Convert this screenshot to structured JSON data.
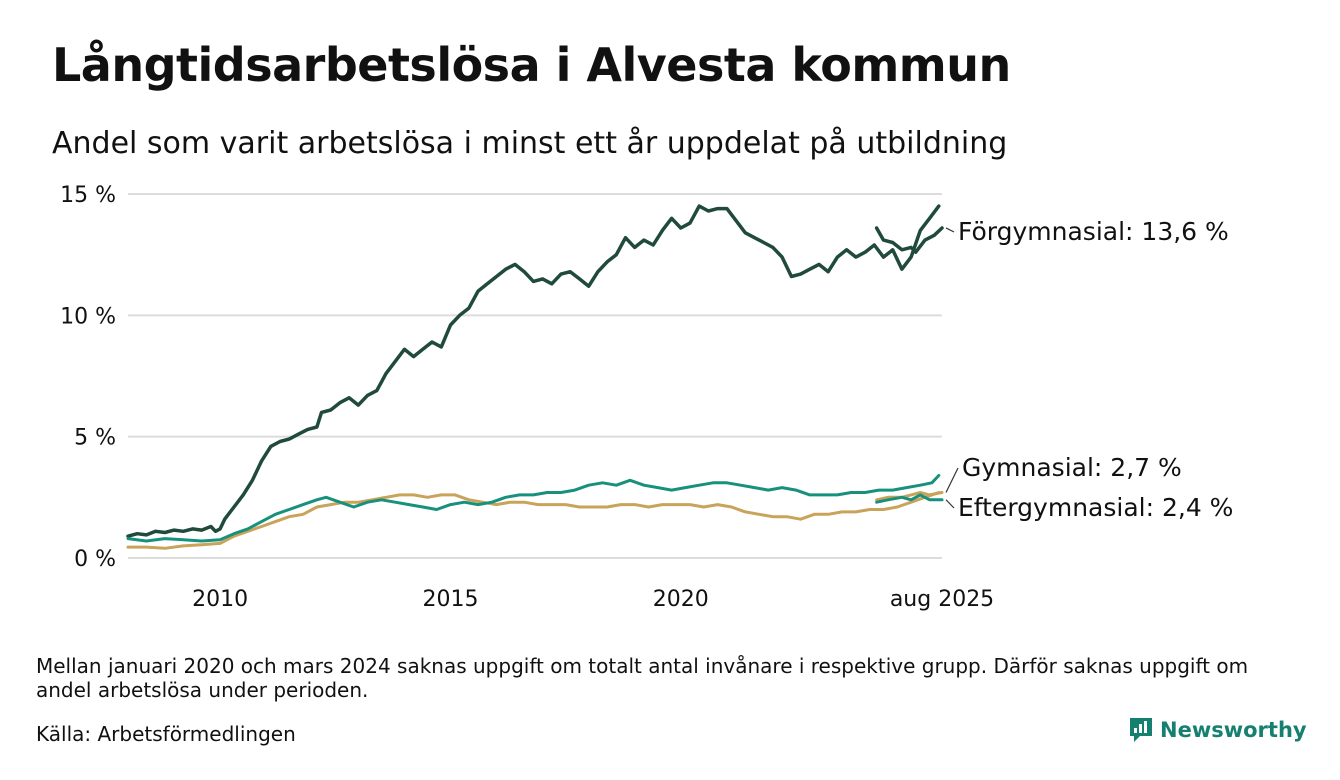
{
  "title": "Långtidsarbetslösa i Alvesta kommun",
  "subtitle": "Andel som varit arbetslösa i minst ett år uppdelat på utbildning",
  "note": "Mellan januari 2020 och mars 2024 saknas uppgift om totalt antal invånare i respektive grupp. Därför saknas uppgift om andel arbetslösa under perioden.",
  "source": "Källa: Arbetsförmedlingen",
  "brand": {
    "name": "Newsworthy",
    "icon": "newsworthy-logo-icon",
    "color": "#15806f"
  },
  "chart_data": {
    "type": "line",
    "x_unit": "year",
    "xlim": [
      2008,
      2025.67
    ],
    "ylim": [
      0,
      15
    ],
    "y_ticks": [
      0,
      5,
      10,
      15
    ],
    "y_tick_labels": [
      "0 %",
      "5 %",
      "10 %",
      "15 %"
    ],
    "x_ticks": [
      2010,
      2015,
      2020,
      2025.67
    ],
    "x_tick_labels": [
      "2010",
      "2015",
      "2020",
      "aug 2025"
    ],
    "grid": true,
    "gap": [
      "2020-01",
      "2024-03"
    ],
    "series": [
      {
        "name": "Förgymnasial",
        "end_label": "Förgymnasial: 13,6 %",
        "color": "#1f4a3c",
        "segments": [
          [
            [
              2008.0,
              0.9
            ],
            [
              2008.2,
              1.0
            ],
            [
              2008.4,
              0.95
            ],
            [
              2008.6,
              1.1
            ],
            [
              2008.8,
              1.05
            ],
            [
              2009.0,
              1.15
            ],
            [
              2009.2,
              1.1
            ],
            [
              2009.4,
              1.2
            ],
            [
              2009.6,
              1.15
            ],
            [
              2009.8,
              1.3
            ],
            [
              2009.9,
              1.1
            ],
            [
              2010.0,
              1.2
            ],
            [
              2010.1,
              1.6
            ],
            [
              2010.3,
              2.1
            ],
            [
              2010.5,
              2.6
            ],
            [
              2010.7,
              3.2
            ],
            [
              2010.9,
              4.0
            ],
            [
              2011.1,
              4.6
            ],
            [
              2011.3,
              4.8
            ],
            [
              2011.5,
              4.9
            ],
            [
              2011.7,
              5.1
            ],
            [
              2011.9,
              5.3
            ],
            [
              2012.1,
              5.4
            ],
            [
              2012.2,
              6.0
            ],
            [
              2012.4,
              6.1
            ],
            [
              2012.6,
              6.4
            ],
            [
              2012.8,
              6.6
            ],
            [
              2013.0,
              6.3
            ],
            [
              2013.2,
              6.7
            ],
            [
              2013.4,
              6.9
            ],
            [
              2013.6,
              7.6
            ],
            [
              2013.8,
              8.1
            ],
            [
              2014.0,
              8.6
            ],
            [
              2014.2,
              8.3
            ],
            [
              2014.4,
              8.6
            ],
            [
              2014.6,
              8.9
            ],
            [
              2014.8,
              8.7
            ],
            [
              2015.0,
              9.6
            ],
            [
              2015.2,
              10.0
            ],
            [
              2015.4,
              10.3
            ],
            [
              2015.6,
              11.0
            ],
            [
              2015.8,
              11.3
            ],
            [
              2016.0,
              11.6
            ],
            [
              2016.2,
              11.9
            ],
            [
              2016.4,
              12.1
            ],
            [
              2016.6,
              11.8
            ],
            [
              2016.8,
              11.4
            ],
            [
              2017.0,
              11.5
            ],
            [
              2017.2,
              11.3
            ],
            [
              2017.4,
              11.7
            ],
            [
              2017.6,
              11.8
            ],
            [
              2017.8,
              11.5
            ],
            [
              2018.0,
              11.2
            ],
            [
              2018.2,
              11.8
            ],
            [
              2018.4,
              12.2
            ],
            [
              2018.6,
              12.5
            ],
            [
              2018.8,
              13.2
            ],
            [
              2019.0,
              12.8
            ],
            [
              2019.2,
              13.1
            ],
            [
              2019.4,
              12.9
            ],
            [
              2019.6,
              13.5
            ],
            [
              2019.8,
              14.0
            ],
            [
              2020.0,
              13.6
            ],
            [
              2020.2,
              13.8
            ],
            [
              2020.4,
              14.5
            ],
            [
              2020.6,
              14.3
            ],
            [
              2020.8,
              14.4
            ],
            [
              2021.0,
              14.4
            ],
            [
              2021.2,
              13.9
            ],
            [
              2021.4,
              13.4
            ],
            [
              2021.6,
              13.2
            ],
            [
              2021.8,
              13.0
            ],
            [
              2022.0,
              12.8
            ],
            [
              2022.2,
              12.4
            ],
            [
              2022.4,
              11.6
            ],
            [
              2022.6,
              11.7
            ],
            [
              2022.8,
              11.9
            ],
            [
              2023.0,
              12.1
            ],
            [
              2023.2,
              11.8
            ],
            [
              2023.4,
              12.4
            ],
            [
              2023.6,
              12.7
            ],
            [
              2023.8,
              12.4
            ],
            [
              2024.0,
              12.6
            ],
            [
              2024.2,
              12.9
            ],
            [
              2024.4,
              12.4
            ],
            [
              2024.6,
              12.7
            ],
            [
              2024.8,
              11.9
            ],
            [
              2025.0,
              12.4
            ],
            [
              2025.2,
              13.5
            ],
            [
              2025.4,
              14.0
            ],
            [
              2025.6,
              14.5
            ]
          ],
          [
            [
              2024.25,
              13.6
            ],
            [
              2024.4,
              13.1
            ],
            [
              2024.6,
              13.0
            ],
            [
              2024.8,
              12.7
            ],
            [
              2025.0,
              12.8
            ],
            [
              2025.1,
              12.6
            ],
            [
              2025.3,
              13.1
            ],
            [
              2025.5,
              13.3
            ],
            [
              2025.67,
              13.6
            ]
          ]
        ]
      },
      {
        "name": "Gymnasial",
        "end_label": "Gymnasial:  2,7 %",
        "color": "#c9a35a",
        "segments": [
          [
            [
              2008.0,
              0.45
            ],
            [
              2008.4,
              0.45
            ],
            [
              2008.8,
              0.4
            ],
            [
              2009.2,
              0.5
            ],
            [
              2009.6,
              0.55
            ],
            [
              2010.0,
              0.6
            ],
            [
              2010.3,
              0.9
            ],
            [
              2010.6,
              1.1
            ],
            [
              2010.9,
              1.3
            ],
            [
              2011.2,
              1.5
            ],
            [
              2011.5,
              1.7
            ],
            [
              2011.8,
              1.8
            ],
            [
              2012.1,
              2.1
            ],
            [
              2012.4,
              2.2
            ],
            [
              2012.7,
              2.3
            ],
            [
              2013.0,
              2.3
            ],
            [
              2013.3,
              2.4
            ],
            [
              2013.6,
              2.5
            ],
            [
              2013.9,
              2.6
            ],
            [
              2014.2,
              2.6
            ],
            [
              2014.5,
              2.5
            ],
            [
              2014.8,
              2.6
            ],
            [
              2015.1,
              2.6
            ],
            [
              2015.4,
              2.4
            ],
            [
              2015.7,
              2.3
            ],
            [
              2016.0,
              2.2
            ],
            [
              2016.3,
              2.3
            ],
            [
              2016.6,
              2.3
            ],
            [
              2016.9,
              2.2
            ],
            [
              2017.2,
              2.2
            ],
            [
              2017.5,
              2.2
            ],
            [
              2017.8,
              2.1
            ],
            [
              2018.1,
              2.1
            ],
            [
              2018.4,
              2.1
            ],
            [
              2018.7,
              2.2
            ],
            [
              2019.0,
              2.2
            ],
            [
              2019.3,
              2.1
            ],
            [
              2019.6,
              2.2
            ],
            [
              2019.9,
              2.2
            ],
            [
              2020.2,
              2.2
            ],
            [
              2020.5,
              2.1
            ],
            [
              2020.8,
              2.2
            ],
            [
              2021.1,
              2.1
            ],
            [
              2021.4,
              1.9
            ],
            [
              2021.7,
              1.8
            ],
            [
              2022.0,
              1.7
            ],
            [
              2022.3,
              1.7
            ],
            [
              2022.6,
              1.6
            ],
            [
              2022.9,
              1.8
            ],
            [
              2023.2,
              1.8
            ],
            [
              2023.5,
              1.9
            ],
            [
              2023.8,
              1.9
            ],
            [
              2024.1,
              2.0
            ],
            [
              2024.4,
              2.0
            ],
            [
              2024.7,
              2.1
            ],
            [
              2025.0,
              2.3
            ],
            [
              2025.3,
              2.5
            ],
            [
              2025.6,
              2.7
            ]
          ],
          [
            [
              2024.25,
              2.4
            ],
            [
              2024.5,
              2.5
            ],
            [
              2024.8,
              2.5
            ],
            [
              2025.0,
              2.6
            ],
            [
              2025.2,
              2.7
            ],
            [
              2025.4,
              2.6
            ],
            [
              2025.67,
              2.7
            ]
          ]
        ]
      },
      {
        "name": "Eftergymnasial",
        "end_label": "Eftergymnasial:  2,4 %",
        "color": "#17907c",
        "segments": [
          [
            [
              2008.0,
              0.8
            ],
            [
              2008.4,
              0.7
            ],
            [
              2008.8,
              0.8
            ],
            [
              2009.2,
              0.75
            ],
            [
              2009.6,
              0.7
            ],
            [
              2010.0,
              0.75
            ],
            [
              2010.3,
              1.0
            ],
            [
              2010.6,
              1.2
            ],
            [
              2010.9,
              1.5
            ],
            [
              2011.2,
              1.8
            ],
            [
              2011.5,
              2.0
            ],
            [
              2011.8,
              2.2
            ],
            [
              2012.1,
              2.4
            ],
            [
              2012.3,
              2.5
            ],
            [
              2012.6,
              2.3
            ],
            [
              2012.9,
              2.1
            ],
            [
              2013.2,
              2.3
            ],
            [
              2013.5,
              2.4
            ],
            [
              2013.8,
              2.3
            ],
            [
              2014.1,
              2.2
            ],
            [
              2014.4,
              2.1
            ],
            [
              2014.7,
              2.0
            ],
            [
              2015.0,
              2.2
            ],
            [
              2015.3,
              2.3
            ],
            [
              2015.6,
              2.2
            ],
            [
              2015.9,
              2.3
            ],
            [
              2016.2,
              2.5
            ],
            [
              2016.5,
              2.6
            ],
            [
              2016.8,
              2.6
            ],
            [
              2017.1,
              2.7
            ],
            [
              2017.4,
              2.7
            ],
            [
              2017.7,
              2.8
            ],
            [
              2018.0,
              3.0
            ],
            [
              2018.3,
              3.1
            ],
            [
              2018.6,
              3.0
            ],
            [
              2018.9,
              3.2
            ],
            [
              2019.2,
              3.0
            ],
            [
              2019.5,
              2.9
            ],
            [
              2019.8,
              2.8
            ],
            [
              2020.1,
              2.9
            ],
            [
              2020.4,
              3.0
            ],
            [
              2020.7,
              3.1
            ],
            [
              2021.0,
              3.1
            ],
            [
              2021.3,
              3.0
            ],
            [
              2021.6,
              2.9
            ],
            [
              2021.9,
              2.8
            ],
            [
              2022.2,
              2.9
            ],
            [
              2022.5,
              2.8
            ],
            [
              2022.8,
              2.6
            ],
            [
              2023.1,
              2.6
            ],
            [
              2023.4,
              2.6
            ],
            [
              2023.7,
              2.7
            ],
            [
              2024.0,
              2.7
            ],
            [
              2024.3,
              2.8
            ],
            [
              2024.6,
              2.8
            ],
            [
              2024.9,
              2.9
            ],
            [
              2025.2,
              3.0
            ],
            [
              2025.45,
              3.1
            ],
            [
              2025.6,
              3.4
            ]
          ],
          [
            [
              2024.25,
              2.3
            ],
            [
              2024.5,
              2.4
            ],
            [
              2024.8,
              2.5
            ],
            [
              2025.0,
              2.4
            ],
            [
              2025.2,
              2.6
            ],
            [
              2025.4,
              2.4
            ],
            [
              2025.67,
              2.4
            ]
          ]
        ]
      }
    ]
  }
}
